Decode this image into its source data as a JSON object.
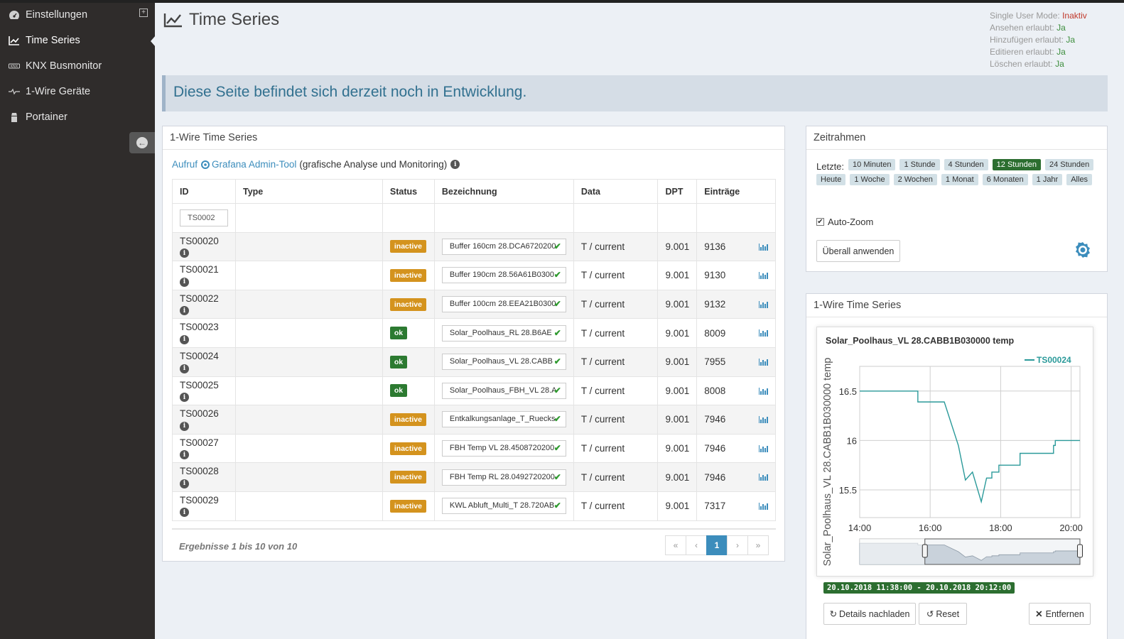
{
  "sidebar": {
    "items": [
      {
        "label": "Einstellungen",
        "icon": "dashboard-icon"
      },
      {
        "label": "Time Series",
        "icon": "line-chart-icon"
      },
      {
        "label": "KNX Busmonitor",
        "icon": "knx-icon"
      },
      {
        "label": "1-Wire Geräte",
        "icon": "onewire-icon"
      },
      {
        "label": "Portainer",
        "icon": "portainer-icon"
      }
    ]
  },
  "header": {
    "title": "Time Series"
  },
  "permissions": {
    "single_user_label": "Single User Mode:",
    "single_user_value": "Inaktiv",
    "view_label": "Ansehen erlaubt:",
    "view_value": "Ja",
    "add_label": "Hinzufügen erlaubt:",
    "add_value": "Ja",
    "edit_label": "Editieren erlaubt:",
    "edit_value": "Ja",
    "delete_label": "Löschen erlaubt:",
    "delete_value": "Ja"
  },
  "alert": {
    "text": "Diese Seite befindet sich derzeit noch in Entwicklung."
  },
  "main_box": {
    "title": "1-Wire Time Series",
    "grafana_prefix": "Aufruf",
    "grafana_link": "Grafana Admin-Tool",
    "grafana_suffix": "(grafische Analyse und Monitoring)",
    "columns": [
      "ID",
      "Type",
      "Status",
      "Bezeichnung",
      "Data",
      "DPT",
      "Einträge"
    ],
    "filter_value": "TS0002",
    "rows": [
      {
        "id": "TS00020",
        "status": "inactive",
        "bez": "Buffer 160cm 28.DCA6720200",
        "data": "T / current",
        "dpt": "9.001",
        "entries": "9136"
      },
      {
        "id": "TS00021",
        "status": "inactive",
        "bez": "Buffer 190cm 28.56A61B0300",
        "data": "T / current",
        "dpt": "9.001",
        "entries": "9130"
      },
      {
        "id": "TS00022",
        "status": "inactive",
        "bez": "Buffer 100cm 28.EEA21B0300",
        "data": "T / current",
        "dpt": "9.001",
        "entries": "9132"
      },
      {
        "id": "TS00023",
        "status": "ok",
        "bez": "Solar_Poolhaus_RL 28.B6AE",
        "data": "T / current",
        "dpt": "9.001",
        "entries": "8009"
      },
      {
        "id": "TS00024",
        "status": "ok",
        "bez": "Solar_Poolhaus_VL 28.CABB",
        "data": "T / current",
        "dpt": "9.001",
        "entries": "7955"
      },
      {
        "id": "TS00025",
        "status": "ok",
        "bez": "Solar_Poolhaus_FBH_VL 28.A",
        "data": "T / current",
        "dpt": "9.001",
        "entries": "8008"
      },
      {
        "id": "TS00026",
        "status": "inactive",
        "bez": "Entkalkungsanlage_T_Ruecks",
        "data": "T / current",
        "dpt": "9.001",
        "entries": "7946"
      },
      {
        "id": "TS00027",
        "status": "inactive",
        "bez": "FBH Temp VL 28.4508720200",
        "data": "T / current",
        "dpt": "9.001",
        "entries": "7946"
      },
      {
        "id": "TS00028",
        "status": "inactive",
        "bez": "FBH Temp RL 28.0492720200",
        "data": "T / current",
        "dpt": "9.001",
        "entries": "7946"
      },
      {
        "id": "TS00029",
        "status": "inactive",
        "bez": "KWL Abluft_Multi_T 28.720AB",
        "data": "T / current",
        "dpt": "9.001",
        "entries": "7317"
      }
    ],
    "result_text": "Ergebnisse 1 bis 10 von 10",
    "pager": [
      "«",
      "‹",
      "1",
      "›",
      "»"
    ]
  },
  "zeitrahmen": {
    "title": "Zeitrahmen",
    "label": "Letzte:",
    "tags": [
      "10 Minuten",
      "1 Stunde",
      "4 Stunden",
      "12 Stunden",
      "24 Stunden",
      "Heute",
      "1 Woche",
      "2 Wochen",
      "1 Monat",
      "6 Monaten",
      "1 Jahr",
      "Alles"
    ],
    "active_tag": "12 Stunden",
    "autozoom_label": "Auto-Zoom",
    "apply_button": "Überall anwenden"
  },
  "chart_box": {
    "title": "1-Wire Time Series",
    "date_range": "20.10.2018 11:38:00 - 20.10.2018 20:12:00",
    "details_button": "Details nachladen",
    "reset_button": "Reset",
    "remove_button": "Entfernen"
  },
  "chart_data": {
    "type": "line",
    "title": "Solar_Poolhaus_VL 28.CABB1B030000 temp",
    "ylabel": "Solar_Poolhaus_VL 28.CABB1B030000 temp",
    "xlabel": "",
    "x_ticks": [
      "14:00",
      "16:00",
      "18:00",
      "20:00"
    ],
    "y_ticks": [
      "15.5",
      "16",
      "16.5"
    ],
    "xlim": [
      14.0,
      20.25
    ],
    "ylim": [
      15.22,
      16.75
    ],
    "legend": "top-right",
    "series": [
      {
        "name": "TS00024",
        "color": "#2b9a9a",
        "x": [
          14.0,
          15.65,
          15.65,
          16.4,
          16.8,
          17.0,
          17.2,
          17.45,
          17.6,
          17.75,
          17.75,
          17.95,
          17.95,
          18.55,
          18.55,
          19.5,
          19.5,
          19.55,
          19.55,
          20.25
        ],
        "y": [
          16.5,
          16.5,
          16.39,
          16.39,
          15.95,
          15.6,
          15.68,
          15.38,
          15.62,
          15.62,
          15.68,
          15.68,
          15.75,
          15.75,
          15.87,
          15.87,
          15.95,
          15.95,
          16.0,
          16.0
        ]
      }
    ]
  }
}
